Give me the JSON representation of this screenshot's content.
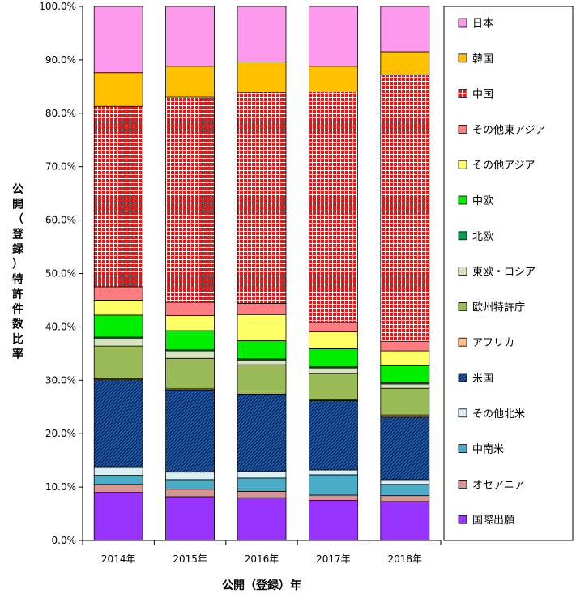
{
  "chart_data": {
    "type": "bar",
    "stacked": true,
    "percent": true,
    "xlabel": "公開（登録）年",
    "ylabel": "公開（登録）特許件数比率",
    "ylim": [
      0,
      100
    ],
    "yticks": [
      "0.0%",
      "10.0%",
      "20.0%",
      "30.0%",
      "40.0%",
      "50.0%",
      "60.0%",
      "70.0%",
      "80.0%",
      "90.0%",
      "100.0%"
    ],
    "categories": [
      "2014年",
      "2015年",
      "2016年",
      "2017年",
      "2018年"
    ],
    "legend_position": "right",
    "grid": false,
    "series": [
      {
        "name": "国際出願",
        "color": "#9933ff",
        "pattern": "none",
        "values": [
          9.0,
          8.2,
          8.0,
          7.5,
          7.3
        ]
      },
      {
        "name": "オセアニア",
        "color": "#d9958f",
        "pattern": "none",
        "values": [
          1.5,
          1.4,
          1.2,
          1.0,
          1.1
        ]
      },
      {
        "name": "中南米",
        "color": "#4aacc6",
        "pattern": "none",
        "values": [
          1.7,
          1.8,
          2.5,
          3.8,
          2.1
        ]
      },
      {
        "name": "その他北米",
        "color": "#dbeef3",
        "pattern": "none",
        "values": [
          1.6,
          1.4,
          1.3,
          0.9,
          0.9
        ]
      },
      {
        "name": "米国",
        "color": "#1f5fb4",
        "pattern": "diag",
        "values": [
          16.3,
          15.4,
          14.3,
          13.0,
          11.7
        ]
      },
      {
        "name": "アフリカ",
        "color": "#fabf8f",
        "pattern": "none",
        "values": [
          0.2,
          0.2,
          0.1,
          0.1,
          0.4
        ]
      },
      {
        "name": "欧州特許庁",
        "color": "#9bbb59",
        "pattern": "none",
        "values": [
          6.1,
          5.7,
          5.5,
          5.0,
          5.0
        ]
      },
      {
        "name": "東欧・ロシア",
        "color": "#d7e4bd",
        "pattern": "none",
        "values": [
          1.5,
          1.4,
          0.9,
          1.0,
          0.8
        ]
      },
      {
        "name": "北欧",
        "color": "#00a050",
        "pattern": "none",
        "values": [
          0.2,
          0.2,
          0.2,
          0.2,
          0.2
        ]
      },
      {
        "name": "中欧",
        "color": "#00ee00",
        "pattern": "none",
        "values": [
          4.1,
          3.6,
          3.4,
          3.4,
          3.2
        ]
      },
      {
        "name": "その他アジア",
        "color": "#ffff66",
        "pattern": "none",
        "values": [
          2.8,
          2.8,
          4.9,
          3.2,
          2.8
        ]
      },
      {
        "name": "その他東アジア",
        "color": "#ff7c80",
        "pattern": "none",
        "values": [
          2.5,
          2.5,
          2.1,
          1.7,
          1.8
        ]
      },
      {
        "name": "中国",
        "color": "#ee1111",
        "pattern": "grid",
        "values": [
          33.8,
          38.4,
          39.5,
          43.2,
          49.9
        ]
      },
      {
        "name": "韓国",
        "color": "#ffc000",
        "pattern": "none",
        "values": [
          6.3,
          5.8,
          5.7,
          4.8,
          4.3
        ]
      },
      {
        "name": "日本",
        "color": "#ff99ee",
        "pattern": "none",
        "values": [
          12.4,
          11.2,
          10.4,
          11.2,
          8.5
        ]
      }
    ]
  }
}
